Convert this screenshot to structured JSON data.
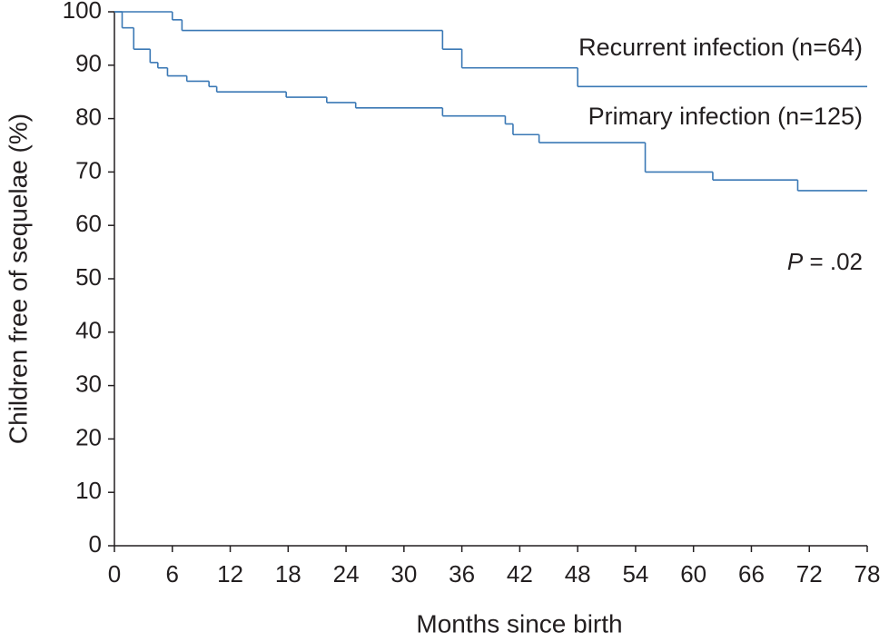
{
  "chart_data": {
    "type": "step",
    "xlabel": "Months since birth",
    "ylabel": "Children free of sequelae (%)",
    "xlim": [
      0,
      78
    ],
    "ylim": [
      0,
      100
    ],
    "xticks": [
      0,
      6,
      12,
      18,
      24,
      30,
      36,
      42,
      48,
      54,
      60,
      66,
      72,
      78
    ],
    "yticks": [
      0,
      10,
      20,
      30,
      40,
      50,
      60,
      70,
      80,
      90,
      100
    ],
    "series": [
      {
        "name": "Recurrent infection (n=64)",
        "color": "#3a78b5",
        "x": [
          0,
          6,
          7,
          34,
          36,
          48,
          78
        ],
        "values": [
          100,
          98.5,
          96.5,
          93,
          89.5,
          86,
          86
        ]
      },
      {
        "name": "Primary infection (n=125)",
        "color": "#3a78b5",
        "x": [
          0,
          0.8,
          2,
          3.7,
          4.5,
          5.5,
          7.5,
          9.8,
          10.6,
          17.8,
          22,
          25,
          34,
          40.5,
          41.3,
          44,
          55,
          62,
          70.8,
          78
        ],
        "values": [
          100,
          97,
          93,
          90.5,
          89.5,
          88,
          87,
          86,
          85,
          84,
          83,
          82,
          80.5,
          79,
          77,
          75.5,
          70,
          68.5,
          66.5,
          66.5
        ]
      }
    ],
    "p_annotation": {
      "symbol": "P",
      "text": " = .02"
    }
  }
}
